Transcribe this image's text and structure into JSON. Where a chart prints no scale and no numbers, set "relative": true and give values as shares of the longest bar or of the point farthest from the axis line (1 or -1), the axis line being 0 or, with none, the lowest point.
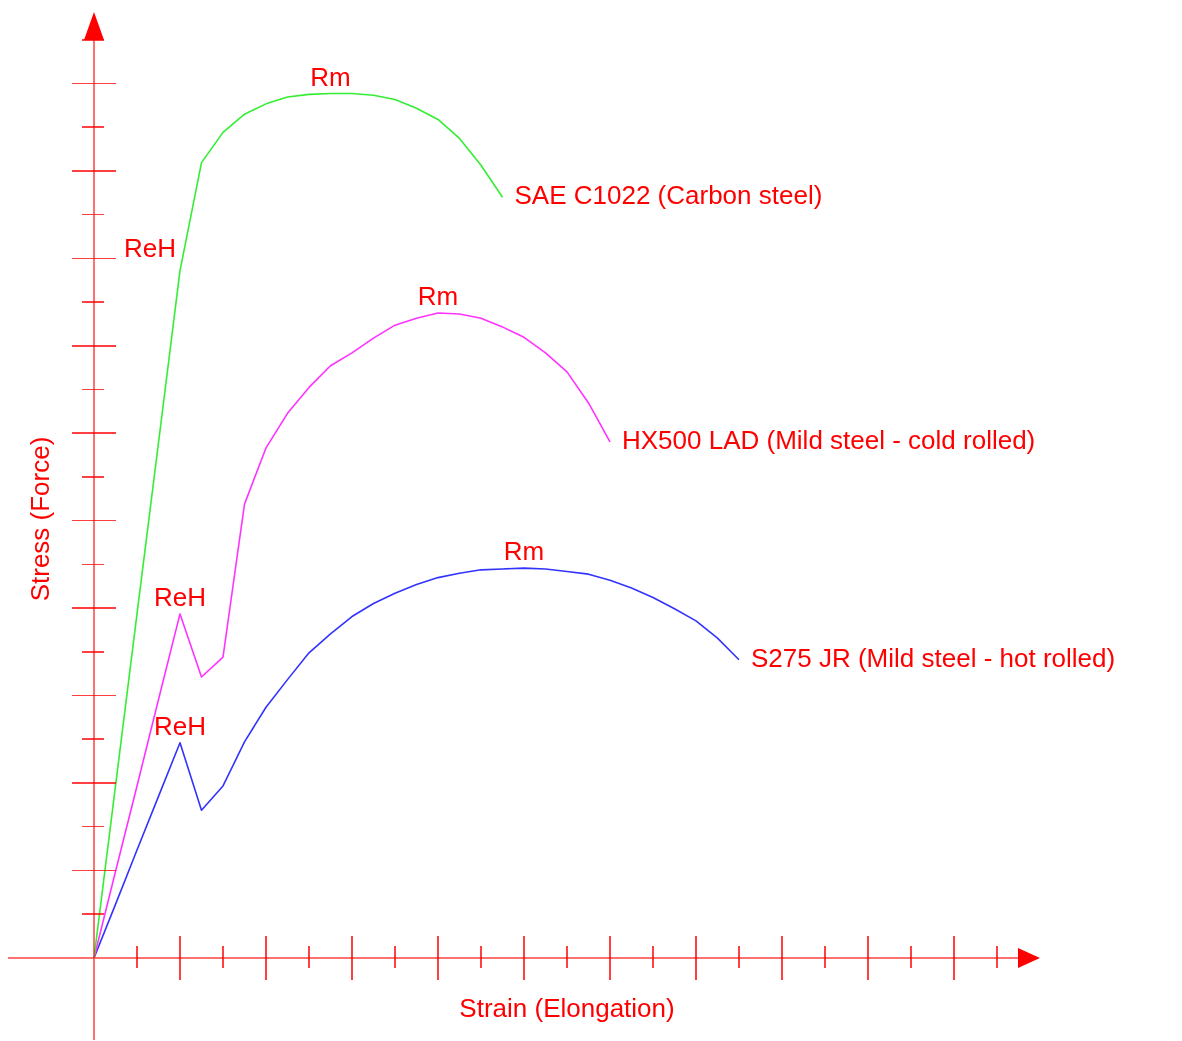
{
  "chart_data": {
    "type": "line",
    "relative": true,
    "xlabel": "Strain (Elongation)",
    "ylabel": "Stress (Force)",
    "categories": [
      null,
      null,
      null,
      null,
      null,
      null,
      null,
      null,
      null,
      null,
      null,
      null,
      null,
      null,
      null,
      null,
      null,
      null,
      null,
      null,
      null,
      null,
      null,
      null,
      null,
      null,
      null,
      null,
      null,
      null,
      null,
      null,
      null,
      null,
      null,
      null,
      null,
      null,
      null,
      null,
      null,
      null,
      null,
      null,
      null
    ],
    "marker": "none",
    "line_style": "solid",
    "series": [
      {
        "name": "SAE C1022 (Carbon steel)",
        "color": "#33ee33",
        "values": [
          0,
          0.199,
          0.398,
          0.596,
          0.795,
          0.92,
          0.955,
          0.976,
          0.988,
          0.996,
          0.999,
          1,
          1,
          0.998,
          0.993,
          0.983,
          0.97,
          0.948,
          0.917,
          0.88,
          null,
          null,
          null,
          null,
          null,
          null,
          null,
          null,
          null,
          null,
          null,
          null,
          null,
          null,
          null,
          null,
          null,
          null,
          null,
          null,
          null,
          null,
          null,
          null,
          null
        ]
      },
      {
        "name": "HX500 LAD (Mild steel - cold rolled)",
        "color": "#ff33ff",
        "values": [
          0,
          0.1,
          0.199,
          0.299,
          0.398,
          0.325,
          0.348,
          0.525,
          0.59,
          0.63,
          0.66,
          0.685,
          0.7,
          0.717,
          0.732,
          0.74,
          0.746,
          0.745,
          0.74,
          0.73,
          0.718,
          0.7,
          0.678,
          0.642,
          0.597,
          null,
          null,
          null,
          null,
          null,
          null,
          null,
          null,
          null,
          null,
          null,
          null,
          null,
          null,
          null,
          null,
          null,
          null,
          null,
          null
        ]
      },
      {
        "name": "S275 JR (Mild steel - hot rolled)",
        "color": "#3333ff",
        "values": [
          0,
          0.062,
          0.125,
          0.187,
          0.249,
          0.171,
          0.199,
          0.25,
          0.29,
          0.322,
          0.353,
          0.375,
          0.395,
          0.41,
          0.422,
          0.432,
          0.44,
          0.445,
          0.449,
          0.45,
          0.451,
          0.45,
          0.447,
          0.444,
          0.437,
          0.428,
          0.417,
          0.404,
          0.39,
          0.37,
          0.345,
          null,
          null,
          null,
          null,
          null,
          null,
          null,
          null,
          null,
          null,
          null,
          null,
          null,
          null
        ]
      }
    ],
    "annotations": [
      "Rm",
      "ReH",
      "Rm",
      "ReH",
      "Rm",
      "ReH"
    ]
  }
}
